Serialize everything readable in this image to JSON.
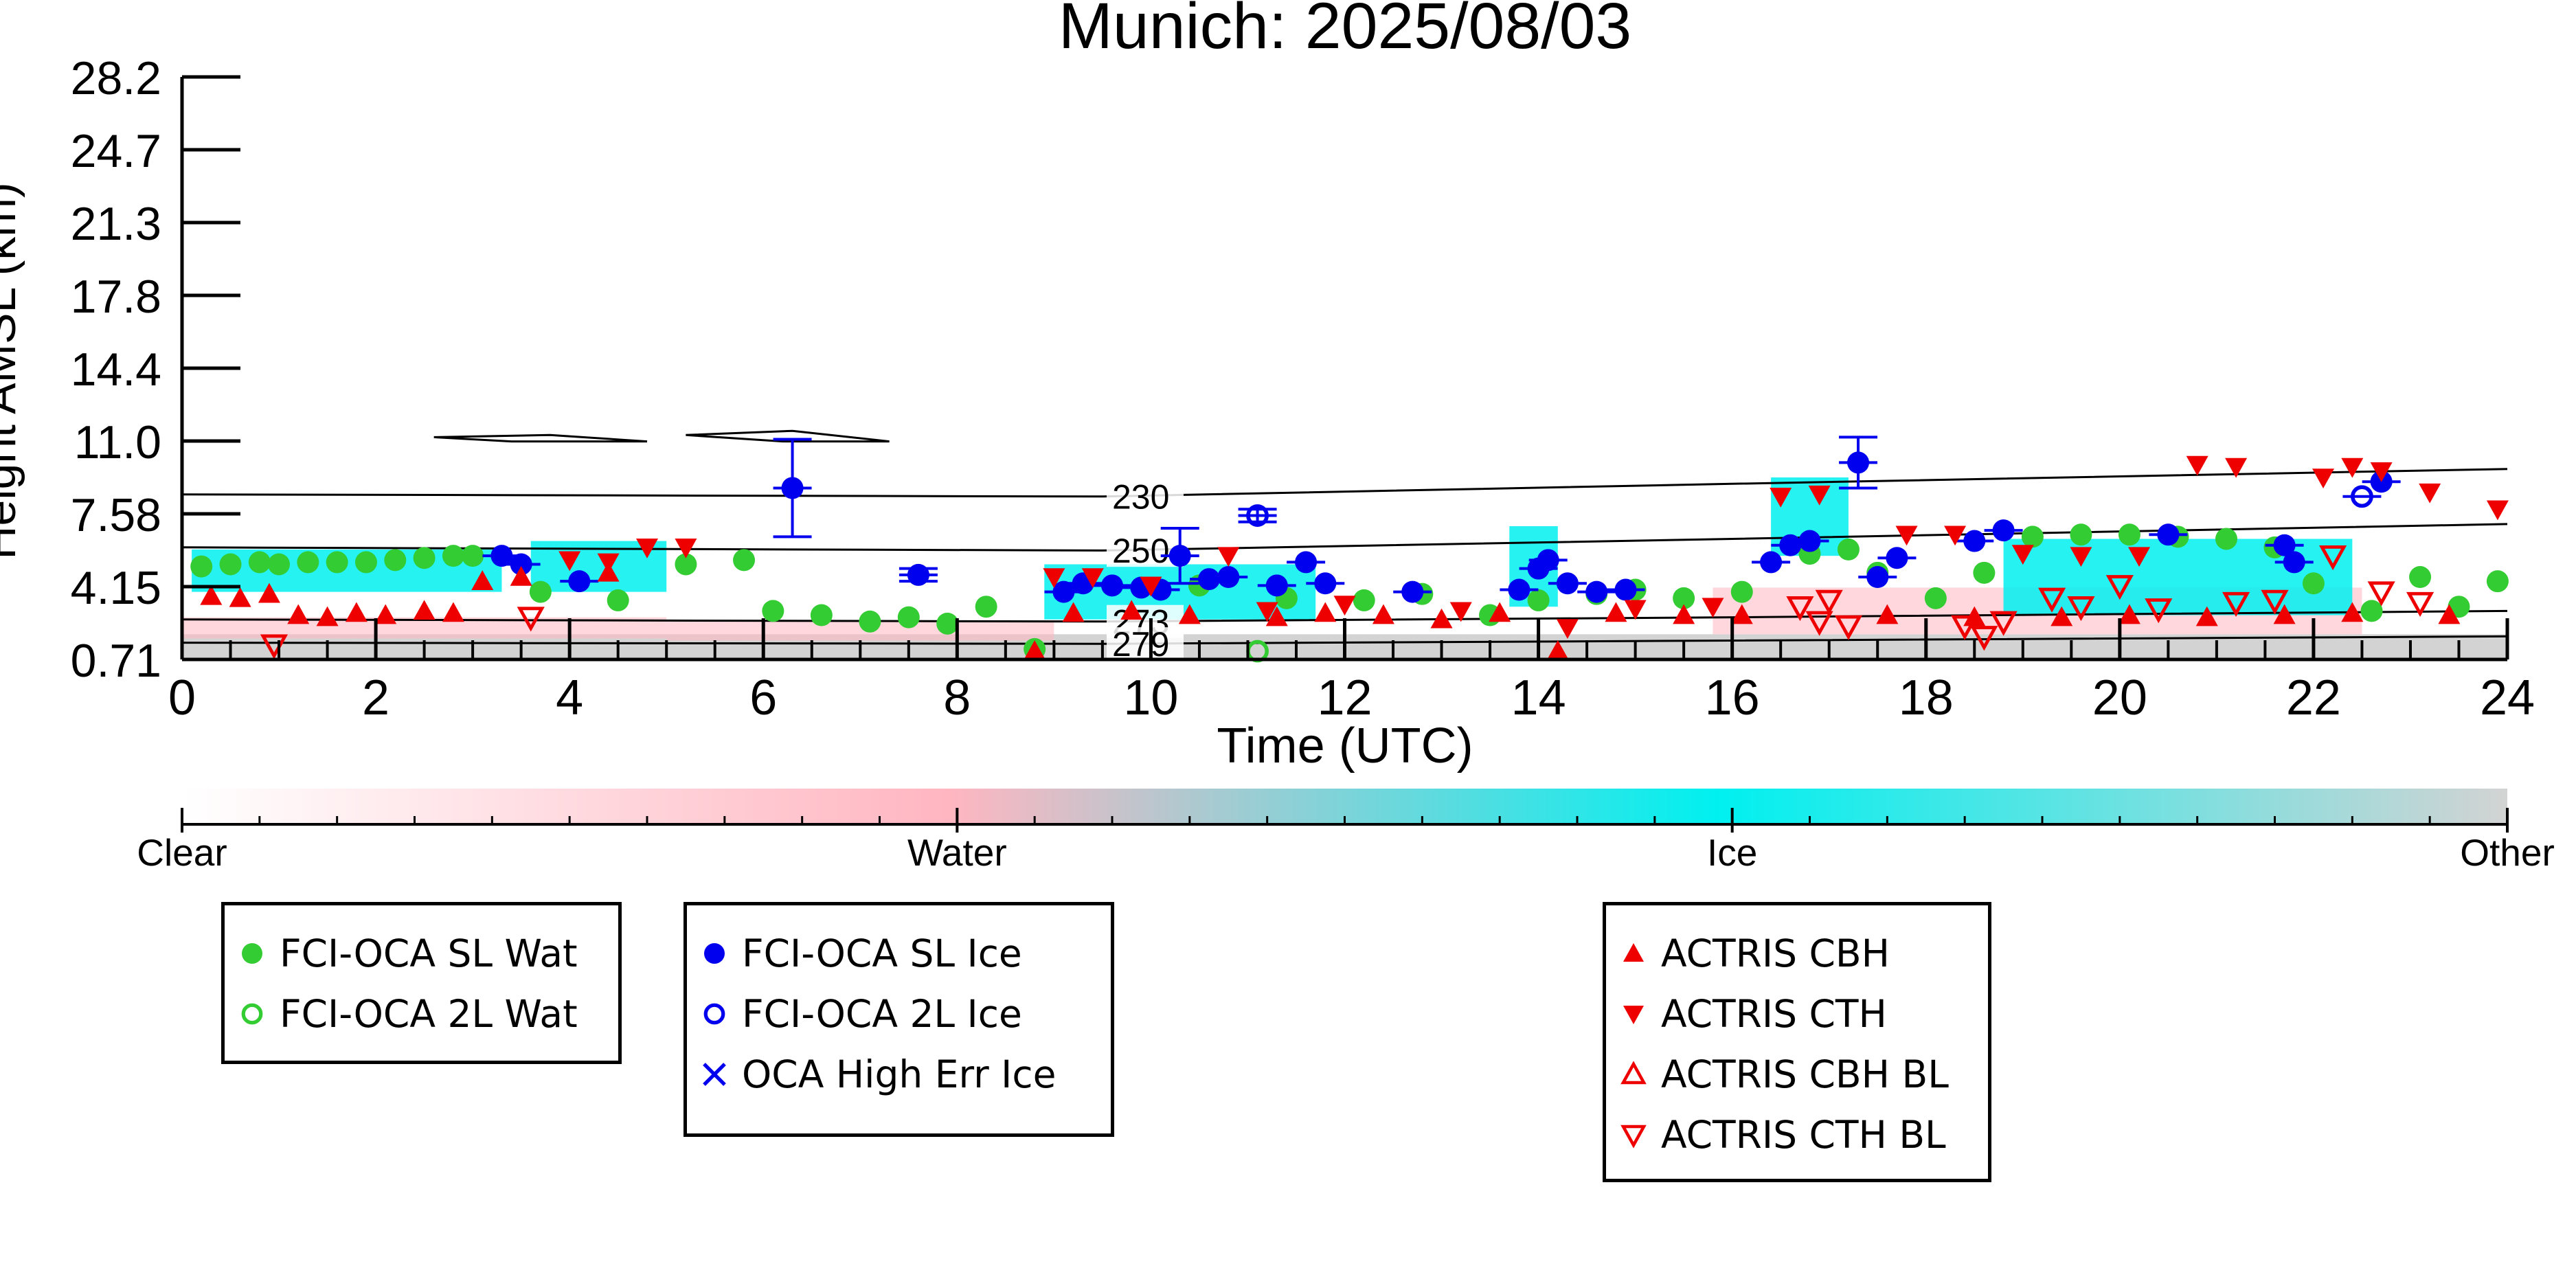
{
  "chart_data": {
    "type": "scatter",
    "title": "Munich: 2025/08/03",
    "xlabel": "Time (UTC)",
    "ylabel": "Height AMSL (km)",
    "xlim": [
      0,
      24
    ],
    "ylim": [
      0.71,
      28.2
    ],
    "x_ticks": [
      "0",
      "2",
      "4",
      "6",
      "8",
      "10",
      "12",
      "14",
      "16",
      "18",
      "20",
      "22",
      "24"
    ],
    "y_ticks": [
      "0.71",
      "4.15",
      "7.58",
      "11.0",
      "14.4",
      "17.8",
      "21.3",
      "24.7",
      "28.2"
    ],
    "background_mask": {
      "colorbar_labels": [
        "Clear",
        "Water",
        "Ice",
        "Other"
      ],
      "colors": {
        "Clear": "#ffffff",
        "Water": "#ffb6c1",
        "Ice": "#00f0f0",
        "Other": "#d3d3d3"
      },
      "ice_regions": [
        {
          "x0": 0.1,
          "x1": 3.3,
          "y0": 3.9,
          "y1": 5.9
        },
        {
          "x0": 3.6,
          "x1": 5.0,
          "y0": 3.9,
          "y1": 6.3
        },
        {
          "x0": 8.9,
          "x1": 11.7,
          "y0": 2.6,
          "y1": 5.2
        },
        {
          "x0": 13.7,
          "x1": 14.2,
          "y0": 3.2,
          "y1": 7.0
        },
        {
          "x0": 16.4,
          "x1": 17.2,
          "y0": 5.6,
          "y1": 9.3
        },
        {
          "x0": 18.8,
          "x1": 22.4,
          "y0": 2.8,
          "y1": 6.4
        }
      ],
      "water_regions": [
        {
          "x0": 0.0,
          "x1": 5.0,
          "y0": 1.7,
          "y1": 2.7
        },
        {
          "x0": 5.0,
          "x1": 9.0,
          "y0": 1.6,
          "y1": 2.5
        },
        {
          "x0": 15.8,
          "x1": 22.5,
          "y0": 1.9,
          "y1": 4.1
        }
      ],
      "other_band": {
        "y0": 0.71,
        "y1": 1.9
      }
    },
    "isotherms": [
      {
        "label": "230",
        "label_x": 9.6,
        "points": [
          [
            0,
            8.5
          ],
          [
            9.5,
            8.4
          ],
          [
            16,
            9.0
          ],
          [
            24,
            9.7
          ]
        ]
      },
      {
        "label": "250",
        "label_x": 9.6,
        "points": [
          [
            0,
            6.0
          ],
          [
            9.5,
            5.85
          ],
          [
            16,
            6.4
          ],
          [
            24,
            7.1
          ]
        ]
      },
      {
        "label": "273",
        "label_x": 9.6,
        "points": [
          [
            0,
            2.6
          ],
          [
            9.5,
            2.5
          ],
          [
            16,
            2.7
          ],
          [
            24,
            3.0
          ]
        ]
      },
      {
        "label": "279",
        "label_x": 9.6,
        "points": [
          [
            0,
            1.5
          ],
          [
            9.5,
            1.45
          ],
          [
            16,
            1.6
          ],
          [
            24,
            1.8
          ]
        ]
      }
    ],
    "contours": [
      {
        "points": [
          [
            2.6,
            11.2
          ],
          [
            3.4,
            11.0
          ],
          [
            4.8,
            11.0
          ],
          [
            3.8,
            11.3
          ],
          [
            2.6,
            11.2
          ]
        ]
      },
      {
        "points": [
          [
            5.2,
            11.3
          ],
          [
            6.2,
            11.0
          ],
          [
            7.3,
            11.0
          ],
          [
            6.3,
            11.5
          ],
          [
            5.2,
            11.3
          ]
        ]
      }
    ],
    "series": [
      {
        "name": "FCI-OCA SL Wat",
        "marker": "circle-filled",
        "color": "#33cc33",
        "points": [
          [
            0.2,
            5.1
          ],
          [
            0.5,
            5.2
          ],
          [
            0.8,
            5.3
          ],
          [
            1.0,
            5.2
          ],
          [
            1.3,
            5.3
          ],
          [
            1.6,
            5.3
          ],
          [
            1.9,
            5.3
          ],
          [
            2.2,
            5.4
          ],
          [
            2.5,
            5.5
          ],
          [
            2.8,
            5.6
          ],
          [
            3.0,
            5.6
          ],
          [
            3.7,
            3.9
          ],
          [
            4.5,
            3.5
          ],
          [
            5.2,
            5.2
          ],
          [
            5.8,
            5.4
          ],
          [
            6.1,
            3.0
          ],
          [
            6.6,
            2.8
          ],
          [
            7.1,
            2.5
          ],
          [
            7.5,
            2.7
          ],
          [
            7.9,
            2.4
          ],
          [
            8.3,
            3.2
          ],
          [
            8.8,
            1.2
          ],
          [
            10.5,
            4.2
          ],
          [
            11.4,
            3.6
          ],
          [
            12.2,
            3.5
          ],
          [
            12.8,
            3.8
          ],
          [
            13.5,
            2.8
          ],
          [
            14.0,
            3.5
          ],
          [
            14.6,
            3.8
          ],
          [
            15.0,
            4.0
          ],
          [
            15.5,
            3.6
          ],
          [
            16.1,
            3.9
          ],
          [
            16.8,
            5.7
          ],
          [
            17.2,
            5.9
          ],
          [
            17.5,
            4.8
          ],
          [
            18.1,
            3.6
          ],
          [
            18.6,
            4.8
          ],
          [
            19.1,
            6.5
          ],
          [
            19.6,
            6.6
          ],
          [
            20.1,
            6.6
          ],
          [
            20.6,
            6.5
          ],
          [
            21.1,
            6.4
          ],
          [
            21.6,
            6.0
          ],
          [
            22.0,
            4.3
          ],
          [
            22.6,
            3.0
          ],
          [
            23.1,
            4.6
          ],
          [
            23.5,
            3.2
          ],
          [
            23.9,
            4.4
          ]
        ]
      },
      {
        "name": "FCI-OCA 2L Wat",
        "marker": "circle-open",
        "color": "#33cc33",
        "points": [
          [
            11.1,
            1.1
          ]
        ]
      },
      {
        "name": "FCI-OCA SL Ice",
        "marker": "circle-filled",
        "color": "#0000ee",
        "errorbars": true,
        "points": [
          [
            3.3,
            5.6,
            0
          ],
          [
            3.5,
            5.2,
            0
          ],
          [
            4.1,
            4.4,
            0
          ],
          [
            6.3,
            8.8,
            2.3
          ],
          [
            7.6,
            4.7,
            0.3
          ],
          [
            9.1,
            3.9,
            0
          ],
          [
            9.3,
            4.3,
            0
          ],
          [
            9.6,
            4.2,
            0
          ],
          [
            9.9,
            4.1,
            0
          ],
          [
            10.1,
            4.0,
            0
          ],
          [
            10.3,
            5.6,
            1.3
          ],
          [
            10.6,
            4.5,
            0
          ],
          [
            10.8,
            4.6,
            0
          ],
          [
            11.3,
            4.2,
            0
          ],
          [
            11.6,
            5.3,
            0
          ],
          [
            11.8,
            4.3,
            0
          ],
          [
            12.7,
            3.9,
            0
          ],
          [
            13.8,
            4.0,
            0
          ],
          [
            14.0,
            5.0,
            0
          ],
          [
            14.1,
            5.4,
            0
          ],
          [
            14.3,
            4.3,
            0
          ],
          [
            14.6,
            3.9,
            0
          ],
          [
            14.9,
            4.0,
            0
          ],
          [
            16.4,
            5.3,
            0
          ],
          [
            16.6,
            6.1,
            0
          ],
          [
            16.8,
            6.3,
            0
          ],
          [
            17.3,
            10.0,
            1.2
          ],
          [
            17.5,
            4.6,
            0
          ],
          [
            17.7,
            5.5,
            0
          ],
          [
            18.5,
            6.3,
            0
          ],
          [
            18.8,
            6.8,
            0
          ],
          [
            20.5,
            6.6,
            0
          ],
          [
            21.7,
            6.1,
            0
          ],
          [
            21.8,
            5.3,
            0
          ],
          [
            22.7,
            9.1,
            0
          ]
        ]
      },
      {
        "name": "FCI-OCA 2L Ice",
        "marker": "circle-open",
        "color": "#0000ee",
        "errorbars": true,
        "points": [
          [
            11.1,
            7.5,
            0.3
          ],
          [
            22.5,
            8.4,
            0
          ]
        ]
      },
      {
        "name": "OCA High Err Ice",
        "marker": "x",
        "color": "#0000ee",
        "points": []
      },
      {
        "name": "ACTRIS CBH",
        "marker": "triangle-up-filled",
        "color": "#ee0000",
        "points": [
          [
            0.3,
            3.7
          ],
          [
            0.6,
            3.6
          ],
          [
            0.9,
            3.8
          ],
          [
            1.2,
            2.8
          ],
          [
            1.5,
            2.7
          ],
          [
            1.8,
            2.9
          ],
          [
            2.1,
            2.8
          ],
          [
            2.5,
            3.0
          ],
          [
            2.8,
            2.9
          ],
          [
            3.1,
            4.4
          ],
          [
            3.5,
            4.6
          ],
          [
            4.4,
            4.8
          ],
          [
            8.8,
            1.1
          ],
          [
            9.2,
            2.9
          ],
          [
            9.8,
            3.0
          ],
          [
            10.4,
            2.8
          ],
          [
            11.3,
            2.7
          ],
          [
            11.8,
            2.9
          ],
          [
            12.4,
            2.8
          ],
          [
            13.0,
            2.6
          ],
          [
            13.6,
            2.9
          ],
          [
            14.2,
            1.1
          ],
          [
            14.8,
            2.9
          ],
          [
            15.5,
            2.8
          ],
          [
            16.1,
            2.8
          ],
          [
            17.6,
            2.8
          ],
          [
            18.5,
            2.7
          ],
          [
            19.4,
            2.7
          ],
          [
            20.1,
            2.8
          ],
          [
            20.9,
            2.7
          ],
          [
            21.7,
            2.8
          ],
          [
            22.4,
            2.9
          ],
          [
            23.4,
            2.8
          ]
        ]
      },
      {
        "name": "ACTRIS CTH",
        "marker": "triangle-down-filled",
        "color": "#ee0000",
        "points": [
          [
            4.0,
            5.4
          ],
          [
            4.4,
            5.3
          ],
          [
            4.8,
            6.0
          ],
          [
            5.2,
            6.0
          ],
          [
            9.0,
            4.6
          ],
          [
            9.4,
            4.6
          ],
          [
            10.0,
            4.2
          ],
          [
            10.8,
            5.6
          ],
          [
            11.2,
            3.0
          ],
          [
            12.0,
            3.3
          ],
          [
            13.2,
            3.0
          ],
          [
            14.3,
            2.2
          ],
          [
            15.0,
            3.1
          ],
          [
            15.8,
            3.2
          ],
          [
            16.5,
            8.4
          ],
          [
            16.9,
            8.5
          ],
          [
            17.8,
            6.6
          ],
          [
            18.3,
            6.6
          ],
          [
            19.0,
            5.7
          ],
          [
            19.6,
            5.6
          ],
          [
            20.2,
            5.6
          ],
          [
            20.8,
            9.9
          ],
          [
            21.2,
            9.8
          ],
          [
            22.1,
            9.3
          ],
          [
            22.4,
            9.8
          ],
          [
            22.7,
            9.6
          ],
          [
            23.2,
            8.6
          ],
          [
            23.9,
            7.8
          ]
        ]
      },
      {
        "name": "ACTRIS CBH BL",
        "marker": "triangle-up-open",
        "color": "#ee0000",
        "points": []
      },
      {
        "name": "ACTRIS CTH BL",
        "marker": "triangle-down-open",
        "color": "#ee0000",
        "points": [
          [
            0.95,
            1.4
          ],
          [
            3.6,
            2.7
          ],
          [
            16.7,
            3.2
          ],
          [
            16.9,
            2.5
          ],
          [
            17.0,
            3.5
          ],
          [
            17.2,
            2.3
          ],
          [
            18.4,
            2.3
          ],
          [
            18.6,
            1.8
          ],
          [
            18.8,
            2.5
          ],
          [
            19.3,
            3.6
          ],
          [
            19.6,
            3.2
          ],
          [
            20.0,
            4.2
          ],
          [
            20.4,
            3.1
          ],
          [
            21.2,
            3.4
          ],
          [
            21.6,
            3.5
          ],
          [
            22.2,
            5.6
          ],
          [
            22.7,
            3.9
          ],
          [
            23.1,
            3.4
          ]
        ]
      }
    ],
    "legend_groups": [
      {
        "entries": [
          {
            "label": "FCI-OCA SL Wat",
            "marker": "circle-filled",
            "color": "#33cc33"
          },
          {
            "label": "FCI-OCA 2L Wat",
            "marker": "circle-open",
            "color": "#33cc33"
          }
        ]
      },
      {
        "entries": [
          {
            "label": "FCI-OCA SL Ice",
            "marker": "circle-filled",
            "color": "#0000ee"
          },
          {
            "label": "FCI-OCA 2L Ice",
            "marker": "circle-open",
            "color": "#0000ee"
          },
          {
            "label": "OCA High Err Ice",
            "marker": "x",
            "color": "#0000ee"
          }
        ]
      },
      {
        "entries": [
          {
            "label": "ACTRIS CBH",
            "marker": "triangle-up-filled",
            "color": "#ee0000"
          },
          {
            "label": "ACTRIS CTH",
            "marker": "triangle-down-filled",
            "color": "#ee0000"
          },
          {
            "label": "ACTRIS CBH BL",
            "marker": "triangle-up-open",
            "color": "#ee0000"
          },
          {
            "label": "ACTRIS CTH BL",
            "marker": "triangle-down-open",
            "color": "#ee0000"
          }
        ]
      }
    ]
  }
}
